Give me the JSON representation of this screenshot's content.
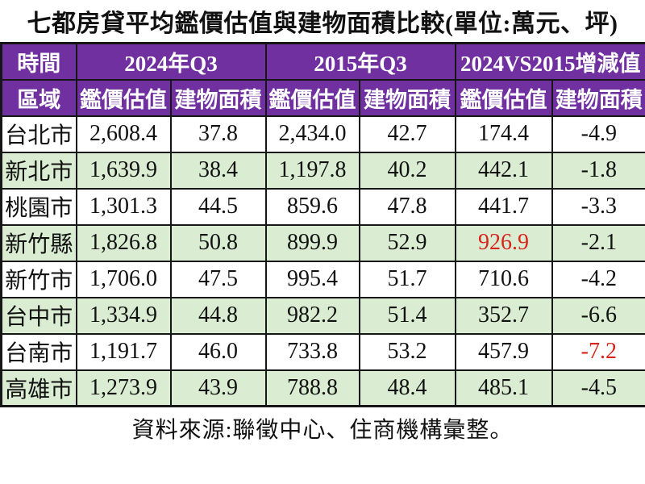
{
  "title": "七都房貸平均鑑價估值與建物面積比較(單位:萬元、坪)",
  "table": {
    "corner_time": "時間",
    "corner_region": "區域",
    "groups": [
      "2024年Q3",
      "2015年Q3",
      "2024VS2015增減值"
    ],
    "subheaders": [
      "鑑價估值",
      "建物面積",
      "鑑價估值",
      "建物面積",
      "鑑價估值",
      "建物面積"
    ],
    "rows": [
      {
        "region": "台北市",
        "values": [
          "2,608.4",
          "37.8",
          "2,434.0",
          "42.7",
          "174.4",
          "-4.9"
        ],
        "red_indices": []
      },
      {
        "region": "新北市",
        "values": [
          "1,639.9",
          "38.4",
          "1,197.8",
          "40.2",
          "442.1",
          "-1.8"
        ],
        "red_indices": []
      },
      {
        "region": "桃園市",
        "values": [
          "1,301.3",
          "44.5",
          "859.6",
          "47.8",
          "441.7",
          "-3.3"
        ],
        "red_indices": []
      },
      {
        "region": "新竹縣",
        "values": [
          "1,826.8",
          "50.8",
          "899.9",
          "52.9",
          "926.9",
          "-2.1"
        ],
        "red_indices": [
          4
        ]
      },
      {
        "region": "新竹市",
        "values": [
          "1,706.0",
          "47.5",
          "995.4",
          "51.7",
          "710.6",
          "-4.2"
        ],
        "red_indices": []
      },
      {
        "region": "台中市",
        "values": [
          "1,334.9",
          "44.8",
          "982.2",
          "51.4",
          "352.7",
          "-6.6"
        ],
        "red_indices": []
      },
      {
        "region": "台南市",
        "values": [
          "1,191.7",
          "46.0",
          "733.8",
          "53.2",
          "457.9",
          "-7.2"
        ],
        "red_indices": [
          5
        ]
      },
      {
        "region": "高雄市",
        "values": [
          "1,273.9",
          "43.9",
          "788.8",
          "48.4",
          "485.1",
          "-4.5"
        ],
        "red_indices": []
      }
    ]
  },
  "footer": "資料來源:聯徵中心、住商機構彙整。",
  "colors": {
    "header_bg": "#7030A0",
    "header_text": "#FFFFFF",
    "row_alt_bg": "#DAEDD2",
    "highlight_red": "#D8251C",
    "border": "#161616",
    "text": "#111111"
  },
  "chart_data": {
    "type": "table",
    "title": "七都房貸平均鑑價估值與建物面積比較",
    "unit": "萬元、坪",
    "column_groups": [
      "2024年Q3",
      "2015年Q3",
      "2024VS2015增減值"
    ],
    "columns": [
      "區域",
      "2024Q3鑑價估值",
      "2024Q3建物面積",
      "2015Q3鑑價估值",
      "2015Q3建物面積",
      "增減值鑑價估值",
      "增減值建物面積"
    ],
    "rows": [
      [
        "台北市",
        2608.4,
        37.8,
        2434.0,
        42.7,
        174.4,
        -4.9
      ],
      [
        "新北市",
        1639.9,
        38.4,
        1197.8,
        40.2,
        442.1,
        -1.8
      ],
      [
        "桃園市",
        1301.3,
        44.5,
        859.6,
        47.8,
        441.7,
        -3.3
      ],
      [
        "新竹縣",
        1826.8,
        50.8,
        899.9,
        52.9,
        926.9,
        -2.1
      ],
      [
        "新竹市",
        1706.0,
        47.5,
        995.4,
        51.7,
        710.6,
        -4.2
      ],
      [
        "台中市",
        1334.9,
        44.8,
        982.2,
        51.4,
        352.7,
        -6.6
      ],
      [
        "台南市",
        1191.7,
        46.0,
        733.8,
        53.2,
        457.9,
        -7.2
      ],
      [
        "高雄市",
        1273.9,
        43.9,
        788.8,
        48.4,
        485.1,
        -4.5
      ]
    ],
    "highlighted_cells": [
      {
        "row": "新竹縣",
        "column": "增減值鑑價估值",
        "color": "red"
      },
      {
        "row": "台南市",
        "column": "增減值建物面積",
        "color": "red"
      }
    ],
    "source": "聯徵中心、住商機構彙整"
  }
}
